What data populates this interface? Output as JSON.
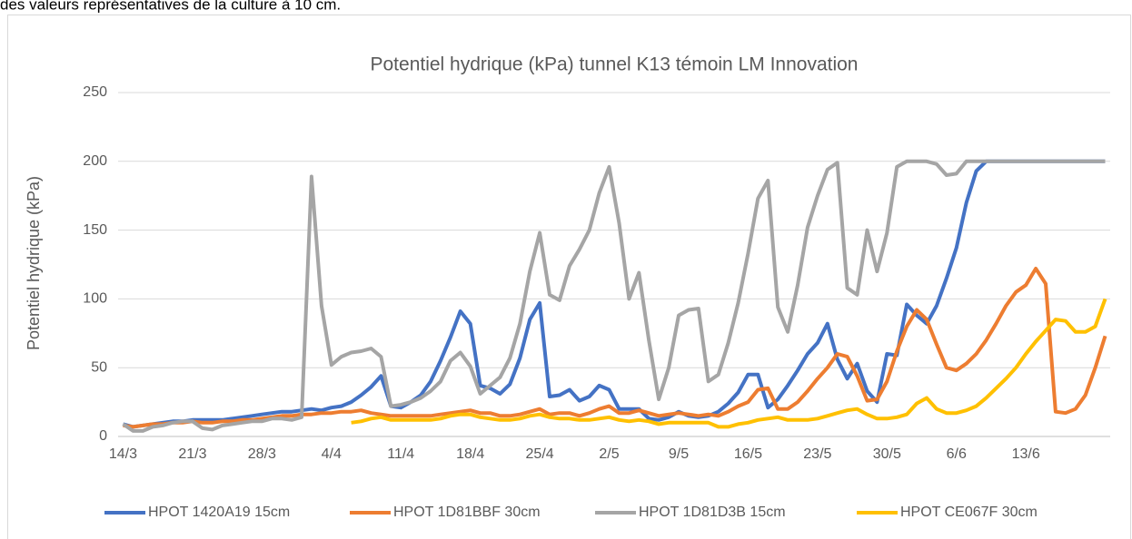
{
  "intro_text": "des valeurs représentatives de la culture à 10 cm.",
  "chart_data": {
    "type": "line",
    "title": "Potentiel hydrique (kPa) tunnel K13 témoin LM Innovation",
    "y_label": "Potentiel hydrique (kPa)",
    "categories": [
      "14/3",
      null,
      null,
      null,
      null,
      null,
      null,
      "21/3",
      null,
      null,
      null,
      null,
      null,
      null,
      "28/3",
      null,
      null,
      null,
      null,
      null,
      null,
      "4/4",
      null,
      null,
      null,
      null,
      null,
      null,
      "11/4",
      null,
      null,
      null,
      null,
      null,
      null,
      "18/4",
      null,
      null,
      null,
      null,
      null,
      null,
      "25/4",
      null,
      null,
      null,
      null,
      null,
      null,
      "2/5",
      null,
      null,
      null,
      null,
      null,
      null,
      "9/5",
      null,
      null,
      null,
      null,
      null,
      null,
      "16/5",
      null,
      null,
      null,
      null,
      null,
      null,
      "23/5",
      null,
      null,
      null,
      null,
      null,
      null,
      "30/5",
      null,
      null,
      null,
      null,
      null,
      null,
      "6/6",
      null,
      null,
      null,
      null,
      null,
      null,
      "13/6",
      null,
      null,
      null,
      null,
      null,
      null,
      null,
      null
    ],
    "series": [
      {
        "name": "HPOT 1420A19 15cm",
        "color": "#4472c4",
        "values": [
          9,
          7,
          8,
          9,
          10,
          11,
          11,
          12,
          12,
          12,
          12,
          13,
          14,
          15,
          16,
          17,
          18,
          18,
          19,
          20,
          19,
          21,
          22,
          25,
          30,
          36,
          44,
          22,
          21,
          25,
          30,
          40,
          55,
          72,
          91,
          82,
          37,
          35,
          31,
          38,
          57,
          85,
          97,
          29,
          30,
          34,
          26,
          29,
          37,
          34,
          20,
          20,
          20,
          13,
          12,
          14,
          18,
          15,
          14,
          15,
          18,
          24,
          32,
          45,
          45,
          21,
          27,
          37,
          48,
          60,
          68,
          82,
          56,
          42,
          53,
          33,
          25,
          60,
          59,
          96,
          88,
          82,
          95,
          115,
          137,
          170,
          193,
          200,
          200,
          200,
          200,
          200,
          200,
          200,
          200,
          200,
          200,
          200,
          200,
          200
        ]
      },
      {
        "name": "HPOT 1D81BBF 30cm",
        "color": "#ed7d31",
        "values": [
          8,
          7,
          8,
          9,
          9,
          10,
          10,
          11,
          10,
          10,
          11,
          11,
          12,
          12,
          13,
          14,
          15,
          15,
          16,
          16,
          17,
          17,
          18,
          18,
          19,
          17,
          16,
          15,
          15,
          15,
          15,
          15,
          16,
          17,
          18,
          19,
          17,
          17,
          15,
          15,
          16,
          18,
          20,
          16,
          17,
          17,
          15,
          17,
          20,
          22,
          17,
          17,
          19,
          17,
          15,
          16,
          17,
          16,
          15,
          16,
          15,
          18,
          22,
          25,
          34,
          35,
          20,
          20,
          25,
          33,
          42,
          50,
          60,
          58,
          44,
          26,
          27,
          40,
          62,
          80,
          92,
          85,
          67,
          50,
          48,
          53,
          60,
          70,
          82,
          95,
          105,
          110,
          122,
          111,
          18,
          17,
          20,
          30,
          50,
          73
        ]
      },
      {
        "name": "HPOT 1D81D3B 15cm",
        "color": "#a5a5a5",
        "values": [
          9,
          4,
          4,
          7,
          8,
          10,
          11,
          11,
          6,
          5,
          8,
          9,
          10,
          11,
          11,
          13,
          13,
          12,
          14,
          189,
          95,
          52,
          58,
          61,
          62,
          64,
          58,
          22,
          23,
          25,
          28,
          33,
          40,
          55,
          61,
          51,
          31,
          37,
          43,
          57,
          82,
          120,
          148,
          103,
          99,
          124,
          136,
          150,
          177,
          196,
          155,
          100,
          119,
          70,
          27,
          50,
          88,
          92,
          93,
          40,
          45,
          68,
          97,
          133,
          173,
          186,
          94,
          76,
          110,
          152,
          175,
          194,
          199,
          108,
          103,
          150,
          120,
          148,
          196,
          200,
          200,
          200,
          198,
          190,
          191,
          200,
          200,
          200,
          200,
          200,
          200,
          200,
          200,
          200,
          200,
          200,
          200,
          200,
          200,
          200
        ]
      },
      {
        "name": "HPOT CE067F 30cm",
        "color": "#ffc000",
        "values": [
          null,
          null,
          null,
          null,
          null,
          null,
          null,
          null,
          null,
          null,
          null,
          null,
          null,
          null,
          null,
          null,
          null,
          null,
          null,
          null,
          null,
          null,
          null,
          10,
          11,
          13,
          14,
          12,
          12,
          12,
          12,
          12,
          13,
          15,
          16,
          16,
          14,
          13,
          12,
          12,
          13,
          15,
          16,
          14,
          13,
          13,
          12,
          12,
          13,
          14,
          12,
          11,
          12,
          11,
          9,
          10,
          10,
          10,
          10,
          10,
          7,
          7,
          9,
          10,
          12,
          13,
          14,
          12,
          12,
          12,
          13,
          15,
          17,
          19,
          20,
          16,
          13,
          13,
          14,
          16,
          24,
          28,
          20,
          17,
          17,
          19,
          22,
          28,
          35,
          42,
          50,
          60,
          69,
          77,
          85,
          84,
          76,
          76,
          80,
          100
        ]
      }
    ],
    "ylim": [
      0,
      250
    ],
    "yticks": [
      0,
      50,
      100,
      150,
      200,
      250
    ],
    "grid": true
  }
}
